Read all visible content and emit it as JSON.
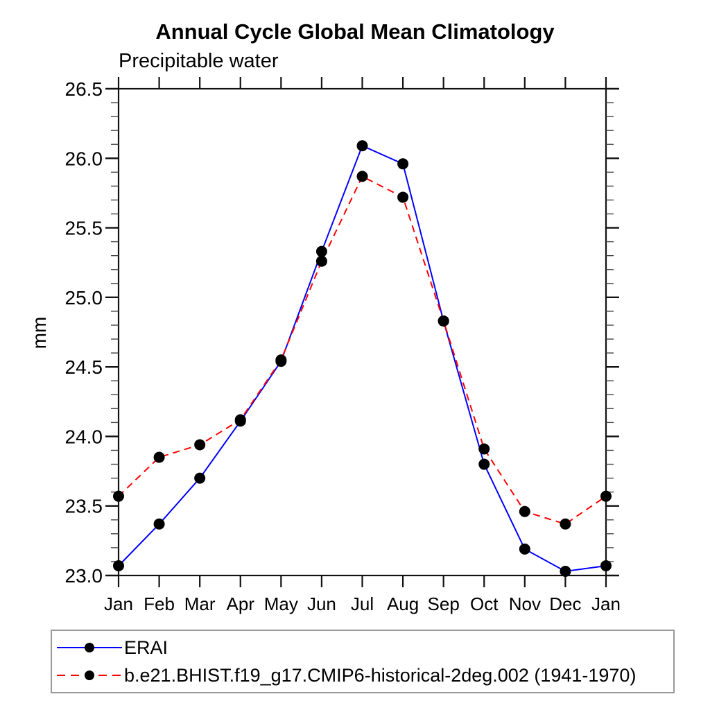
{
  "chart": {
    "title": "Annual Cycle Global Mean Climatology",
    "subtitle": "Precipitable water",
    "ylabel": "mm"
  },
  "legend": {
    "position": "bottom",
    "items": [
      {
        "label": "ERAI",
        "color": "#0000ff",
        "line_style": "solid",
        "marker": "black-dot"
      },
      {
        "label": "b.e21.BHIST.f19_g17.CMIP6-historical-2deg.002 (1941-1970)",
        "color": "#ff0000",
        "line_style": "dashed",
        "marker": "black-dot"
      }
    ]
  },
  "chart_data": {
    "type": "line",
    "title": "Annual Cycle Global Mean Climatology",
    "subtitle": "Precipitable water",
    "xlabel": "",
    "ylabel": "mm",
    "x_categories": [
      "Jan",
      "Feb",
      "Mar",
      "Apr",
      "May",
      "Jun",
      "Jul",
      "Aug",
      "Sep",
      "Oct",
      "Nov",
      "Dec",
      "Jan"
    ],
    "ylim": [
      23.0,
      26.5
    ],
    "y_major_ticks": [
      23.0,
      23.5,
      24.0,
      24.5,
      25.0,
      25.5,
      26.0,
      26.5
    ],
    "y_minor_step": 0.1,
    "grid": false,
    "legend_position": "bottom",
    "marker_color": "#000000",
    "series": [
      {
        "name": "ERAI",
        "color": "#0000ff",
        "line_style": "solid",
        "marker": "circle",
        "values": [
          23.07,
          23.37,
          23.7,
          24.11,
          24.54,
          25.33,
          26.09,
          25.96,
          24.83,
          23.8,
          23.19,
          23.03,
          23.07
        ]
      },
      {
        "name": "b.e21.BHIST.f19_g17.CMIP6-historical-2deg.002 (1941-1970)",
        "color": "#ff0000",
        "line_style": "dashed",
        "marker": "circle",
        "values": [
          23.57,
          23.85,
          23.94,
          24.12,
          24.55,
          25.26,
          25.87,
          25.72,
          24.83,
          23.91,
          23.46,
          23.37,
          23.57
        ]
      }
    ]
  }
}
